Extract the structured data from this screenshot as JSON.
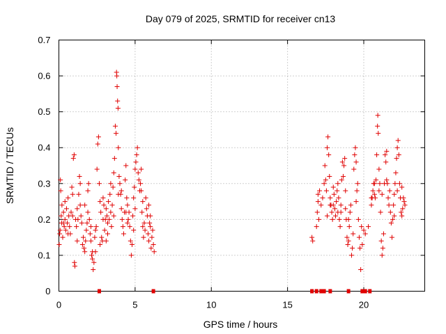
{
  "chart_data": {
    "type": "scatter",
    "title": "Day 079 of 2025, SRMTID for receiver cn13",
    "xlabel": "GPS time / hours",
    "ylabel": "SRMTID / TECUs",
    "xlim": [
      0,
      24
    ],
    "ylim": [
      0,
      0.7
    ],
    "x_ticks": [
      0,
      5,
      10,
      15,
      20
    ],
    "x_tick_labels": [
      "0",
      "5",
      "10",
      "15",
      "20"
    ],
    "y_ticks": [
      0,
      0.1,
      0.2,
      0.3,
      0.4,
      0.5,
      0.6,
      0.7
    ],
    "y_tick_labels": [
      "0",
      "0.1",
      "0.2",
      "0.3",
      "0.4",
      "0.5",
      "0.6",
      "0.7"
    ],
    "grid": true,
    "marker": "plus",
    "color": "#e00000",
    "series": [
      {
        "name": "SRMTID",
        "points": [
          [
            0.02,
            0.13
          ],
          [
            0.05,
            0.16
          ],
          [
            0.08,
            0.17
          ],
          [
            0.1,
            0.31
          ],
          [
            0.12,
            0.28
          ],
          [
            0.15,
            0.21
          ],
          [
            0.18,
            0.19
          ],
          [
            0.2,
            0.24
          ],
          [
            0.25,
            0.15
          ],
          [
            0.3,
            0.22
          ],
          [
            0.35,
            0.18
          ],
          [
            0.4,
            0.2
          ],
          [
            0.45,
            0.17
          ],
          [
            0.5,
            0.23
          ],
          [
            0.55,
            0.19
          ],
          [
            0.6,
            0.26
          ],
          [
            0.65,
            0.21
          ],
          [
            0.7,
            0.18
          ],
          [
            0.75,
            0.16
          ],
          [
            0.8,
            0.22
          ],
          [
            0.85,
            0.29
          ],
          [
            0.9,
            0.21
          ],
          [
            0.95,
            0.37
          ],
          [
            1.0,
            0.38
          ],
          [
            1.02,
            0.08
          ],
          [
            1.05,
            0.07
          ],
          [
            1.1,
            0.2
          ],
          [
            1.15,
            0.18
          ],
          [
            1.2,
            0.23
          ],
          [
            1.25,
            0.2
          ],
          [
            1.3,
            0.27
          ],
          [
            1.35,
            0.32
          ],
          [
            1.4,
            0.24
          ],
          [
            1.45,
            0.21
          ],
          [
            1.5,
            0.19
          ],
          [
            1.55,
            0.13
          ],
          [
            1.6,
            0.15
          ],
          [
            1.65,
            0.12
          ],
          [
            1.7,
            0.11
          ],
          [
            1.75,
            0.14
          ],
          [
            1.8,
            0.17
          ],
          [
            1.85,
            0.19
          ],
          [
            1.9,
            0.28
          ],
          [
            1.95,
            0.3
          ],
          [
            2.0,
            0.2
          ],
          [
            2.05,
            0.16
          ],
          [
            2.1,
            0.14
          ],
          [
            2.15,
            0.1
          ],
          [
            2.2,
            0.09
          ],
          [
            2.25,
            0.06
          ],
          [
            2.3,
            0.08
          ],
          [
            2.35,
            0.15
          ],
          [
            2.4,
            0.11
          ],
          [
            2.45,
            0.18
          ],
          [
            2.5,
            0.34
          ],
          [
            2.55,
            0.41
          ],
          [
            2.6,
            0.43
          ],
          [
            2.65,
            0.3
          ],
          [
            2.7,
            0.25
          ],
          [
            2.75,
            0.22
          ],
          [
            2.8,
            0.15
          ],
          [
            2.85,
            0.14
          ],
          [
            2.9,
            0.26
          ],
          [
            2.95,
            0.24
          ],
          [
            3.0,
            0.17
          ],
          [
            3.05,
            0.2
          ],
          [
            3.1,
            0.23
          ],
          [
            3.15,
            0.21
          ],
          [
            3.2,
            0.19
          ],
          [
            3.25,
            0.25
          ],
          [
            3.3,
            0.2
          ],
          [
            3.35,
            0.27
          ],
          [
            3.4,
            0.22
          ],
          [
            3.45,
            0.18
          ],
          [
            3.5,
            0.24
          ],
          [
            3.55,
            0.29
          ],
          [
            3.6,
            0.33
          ],
          [
            3.65,
            0.37
          ],
          [
            3.7,
            0.46
          ],
          [
            3.75,
            0.44
          ],
          [
            3.78,
            0.61
          ],
          [
            3.8,
            0.6
          ],
          [
            3.82,
            0.57
          ],
          [
            3.85,
            0.53
          ],
          [
            3.88,
            0.51
          ],
          [
            3.9,
            0.4
          ],
          [
            3.95,
            0.32
          ],
          [
            4.0,
            0.3
          ],
          [
            4.05,
            0.27
          ],
          [
            4.1,
            0.23
          ],
          [
            4.15,
            0.2
          ],
          [
            4.2,
            0.18
          ],
          [
            4.25,
            0.16
          ],
          [
            4.3,
            0.22
          ],
          [
            4.35,
            0.31
          ],
          [
            4.4,
            0.35
          ],
          [
            4.45,
            0.26
          ],
          [
            4.5,
            0.24
          ],
          [
            4.55,
            0.2
          ],
          [
            4.6,
            0.22
          ],
          [
            4.65,
            0.18
          ],
          [
            4.7,
            0.14
          ],
          [
            4.75,
            0.1
          ],
          [
            4.8,
            0.13
          ],
          [
            4.85,
            0.21
          ],
          [
            4.9,
            0.26
          ],
          [
            4.95,
            0.29
          ],
          [
            5.0,
            0.34
          ],
          [
            5.05,
            0.36
          ],
          [
            5.1,
            0.38
          ],
          [
            5.15,
            0.4
          ],
          [
            5.2,
            0.33
          ],
          [
            5.25,
            0.31
          ],
          [
            5.3,
            0.28
          ],
          [
            5.35,
            0.3
          ],
          [
            5.4,
            0.34
          ],
          [
            5.45,
            0.22
          ],
          [
            5.5,
            0.18
          ],
          [
            5.55,
            0.15
          ],
          [
            5.6,
            0.19
          ],
          [
            5.65,
            0.17
          ],
          [
            5.7,
            0.26
          ],
          [
            5.75,
            0.23
          ],
          [
            5.8,
            0.21
          ],
          [
            5.85,
            0.16
          ],
          [
            5.9,
            0.14
          ],
          [
            5.95,
            0.19
          ],
          [
            6.0,
            0.21
          ],
          [
            6.05,
            0.12
          ],
          [
            6.1,
            0.15
          ],
          [
            6.15,
            0.17
          ],
          [
            6.2,
            0.13
          ],
          [
            6.25,
            0.11
          ],
          [
            0.3,
            0.19
          ],
          [
            0.6,
            0.16
          ],
          [
            1.2,
            0.14
          ],
          [
            1.7,
            0.24
          ],
          [
            2.2,
            0.11
          ],
          [
            2.7,
            0.13
          ],
          [
            3.2,
            0.16
          ],
          [
            3.6,
            0.21
          ],
          [
            4.1,
            0.28
          ],
          [
            4.5,
            0.19
          ],
          [
            5.0,
            0.23
          ],
          [
            5.5,
            0.25
          ],
          [
            6.0,
            0.18
          ],
          [
            0.4,
            0.25
          ],
          [
            0.9,
            0.27
          ],
          [
            1.4,
            0.3
          ],
          [
            1.9,
            0.22
          ],
          [
            2.4,
            0.17
          ],
          [
            2.9,
            0.2
          ],
          [
            3.4,
            0.3
          ],
          [
            3.9,
            0.27
          ],
          [
            4.4,
            0.22
          ],
          [
            4.9,
            0.17
          ],
          [
            5.4,
            0.28
          ],
          [
            5.9,
            0.24
          ],
          [
            2.1,
            0.18
          ],
          [
            3.1,
            0.14
          ],
          [
            2.65,
            0.0
          ],
          [
            6.2,
            0.0
          ],
          [
            16.6,
            0.15
          ],
          [
            16.65,
            0.14
          ],
          [
            16.9,
            0.18
          ],
          [
            16.95,
            0.22
          ],
          [
            17.0,
            0.25
          ],
          [
            17.05,
            0.2
          ],
          [
            17.1,
            0.28
          ],
          [
            17.2,
            0.24
          ],
          [
            17.3,
            0.26
          ],
          [
            17.4,
            0.3
          ],
          [
            17.45,
            0.35
          ],
          [
            17.5,
            0.31
          ],
          [
            17.55,
            0.28
          ],
          [
            17.6,
            0.4
          ],
          [
            17.65,
            0.43
          ],
          [
            17.7,
            0.38
          ],
          [
            17.75,
            0.32
          ],
          [
            17.8,
            0.26
          ],
          [
            17.85,
            0.24
          ],
          [
            17.9,
            0.22
          ],
          [
            17.95,
            0.2
          ],
          [
            18.0,
            0.24
          ],
          [
            18.05,
            0.27
          ],
          [
            18.1,
            0.23
          ],
          [
            18.15,
            0.21
          ],
          [
            18.2,
            0.25
          ],
          [
            18.25,
            0.28
          ],
          [
            18.3,
            0.3
          ],
          [
            18.35,
            0.26
          ],
          [
            18.4,
            0.2
          ],
          [
            18.45,
            0.18
          ],
          [
            18.5,
            0.22
          ],
          [
            18.55,
            0.31
          ],
          [
            18.6,
            0.36
          ],
          [
            18.65,
            0.32
          ],
          [
            18.7,
            0.35
          ],
          [
            18.75,
            0.37
          ],
          [
            18.8,
            0.28
          ],
          [
            18.85,
            0.2
          ],
          [
            18.9,
            0.15
          ],
          [
            18.95,
            0.13
          ],
          [
            19.0,
            0.14
          ],
          [
            19.05,
            0.18
          ],
          [
            19.1,
            0.22
          ],
          [
            19.15,
            0.24
          ],
          [
            19.2,
            0.1
          ],
          [
            19.25,
            0.12
          ],
          [
            19.3,
            0.16
          ],
          [
            19.35,
            0.34
          ],
          [
            19.4,
            0.38
          ],
          [
            19.45,
            0.4
          ],
          [
            19.5,
            0.36
          ],
          [
            19.55,
            0.28
          ],
          [
            19.6,
            0.3
          ],
          [
            19.65,
            0.2
          ],
          [
            19.7,
            0.15
          ],
          [
            19.75,
            0.12
          ],
          [
            19.8,
            0.06
          ],
          [
            19.85,
            0.18
          ],
          [
            19.9,
            0.13
          ],
          [
            20.0,
            0.17
          ],
          [
            20.1,
            0.16
          ],
          [
            20.3,
            0.18
          ],
          [
            20.5,
            0.24
          ],
          [
            20.55,
            0.26
          ],
          [
            20.6,
            0.28
          ],
          [
            20.65,
            0.3
          ],
          [
            20.7,
            0.27
          ],
          [
            20.75,
            0.26
          ],
          [
            20.8,
            0.31
          ],
          [
            20.85,
            0.38
          ],
          [
            20.9,
            0.46
          ],
          [
            20.92,
            0.49
          ],
          [
            20.95,
            0.44
          ],
          [
            21.0,
            0.34
          ],
          [
            21.05,
            0.3
          ],
          [
            21.1,
            0.22
          ],
          [
            21.15,
            0.14
          ],
          [
            21.2,
            0.1
          ],
          [
            21.25,
            0.12
          ],
          [
            21.3,
            0.16
          ],
          [
            21.35,
            0.3
          ],
          [
            21.4,
            0.38
          ],
          [
            21.45,
            0.36
          ],
          [
            21.5,
            0.39
          ],
          [
            21.55,
            0.3
          ],
          [
            21.6,
            0.26
          ],
          [
            21.65,
            0.24
          ],
          [
            21.7,
            0.28
          ],
          [
            21.75,
            0.22
          ],
          [
            21.8,
            0.19
          ],
          [
            21.85,
            0.15
          ],
          [
            21.9,
            0.2
          ],
          [
            21.95,
            0.24
          ],
          [
            22.0,
            0.27
          ],
          [
            22.05,
            0.3
          ],
          [
            22.1,
            0.33
          ],
          [
            22.15,
            0.37
          ],
          [
            22.2,
            0.4
          ],
          [
            22.25,
            0.42
          ],
          [
            22.3,
            0.38
          ],
          [
            22.35,
            0.3
          ],
          [
            22.4,
            0.26
          ],
          [
            22.45,
            0.22
          ],
          [
            22.5,
            0.21
          ],
          [
            22.55,
            0.23
          ],
          [
            22.6,
            0.26
          ],
          [
            22.65,
            0.25
          ],
          [
            22.7,
            0.24
          ],
          [
            17.0,
            0.27
          ],
          [
            17.6,
            0.21
          ],
          [
            18.0,
            0.29
          ],
          [
            18.5,
            0.24
          ],
          [
            19.0,
            0.2
          ],
          [
            19.5,
            0.25
          ],
          [
            20.5,
            0.26
          ],
          [
            21.0,
            0.28
          ],
          [
            21.5,
            0.31
          ],
          [
            22.0,
            0.21
          ],
          [
            22.5,
            0.29
          ],
          [
            17.8,
            0.24
          ],
          [
            18.3,
            0.22
          ],
          [
            18.8,
            0.23
          ],
          [
            20.7,
            0.3
          ],
          [
            21.2,
            0.27
          ],
          [
            22.2,
            0.28
          ],
          [
            16.6,
            0.0
          ],
          [
            16.9,
            0.0
          ],
          [
            17.2,
            0.0
          ],
          [
            17.4,
            0.0
          ],
          [
            17.8,
            0.0
          ],
          [
            19.0,
            0.0
          ],
          [
            19.9,
            0.0
          ],
          [
            20.1,
            0.0
          ],
          [
            20.4,
            0.0
          ]
        ]
      }
    ]
  }
}
